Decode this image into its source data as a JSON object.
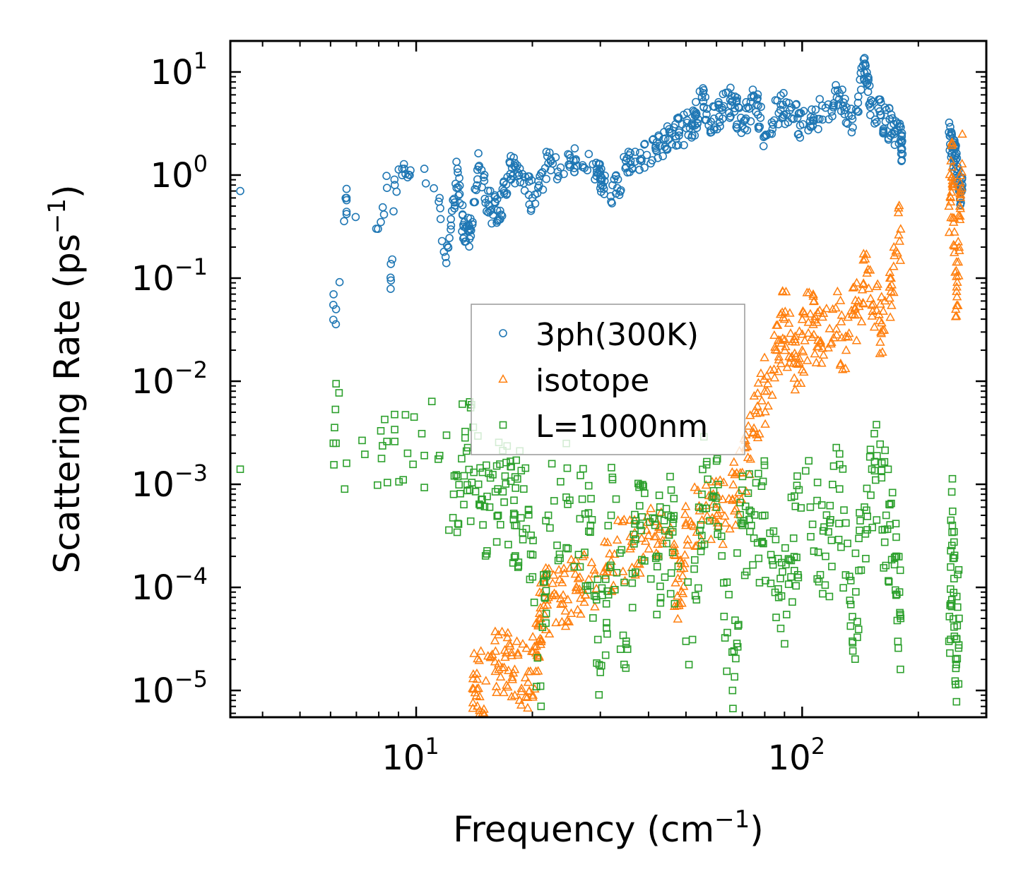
{
  "chart_data": {
    "type": "scatter",
    "xscale": "log",
    "yscale": "log",
    "xlim": [
      3.3,
      300
    ],
    "ylim": [
      5.5e-06,
      20
    ],
    "xlabel": "Frequency (cm",
    "xlabel_exp": "−1",
    "xlabel_end": ")",
    "ylabel": "Scattering Rate (ps",
    "ylabel_exp": "−1",
    "ylabel_end": ")",
    "x_ticks": [
      {
        "base": "10",
        "exp": "1",
        "value": 10
      },
      {
        "base": "10",
        "exp": "2",
        "value": 100
      }
    ],
    "y_ticks": [
      {
        "base": "10",
        "exp": "1",
        "value": 10
      },
      {
        "base": "10",
        "exp": "0",
        "value": 1
      },
      {
        "base": "10",
        "exp": "−1",
        "value": 0.1
      },
      {
        "base": "10",
        "exp": "−2",
        "value": 0.01
      },
      {
        "base": "10",
        "exp": "−3",
        "value": 0.001
      },
      {
        "base": "10",
        "exp": "−4",
        "value": 0.0001
      },
      {
        "base": "10",
        "exp": "−5",
        "value": 1e-05
      }
    ],
    "legend_position": "center",
    "series": [
      {
        "name": "3ph(300K)",
        "marker": "circle",
        "color": "#1f77b4",
        "anchors": [
          [
            3.5,
            0.7
          ],
          [
            6.1,
            0.055
          ],
          [
            6.2,
            0.05
          ],
          [
            6.6,
            0.6
          ],
          [
            6.6,
            0.57
          ],
          [
            8.1,
            0.35
          ],
          [
            8.4,
            0.75
          ],
          [
            8.6,
            0.095
          ],
          [
            8.8,
            0.8
          ],
          [
            9.2,
            1.15
          ],
          [
            9.5,
            0.95
          ],
          [
            10.5,
            1.15
          ],
          [
            11.5,
            0.6
          ],
          [
            11.8,
            0.18
          ],
          [
            12.1,
            0.2
          ],
          [
            12.8,
            1.15
          ],
          [
            13.3,
            0.25
          ],
          [
            13.8,
            0.3
          ],
          [
            14.5,
            1.2
          ],
          [
            15.5,
            0.5
          ],
          [
            16.5,
            0.45
          ],
          [
            17.5,
            1.3
          ],
          [
            18.5,
            1.0
          ],
          [
            20,
            0.6
          ],
          [
            22,
            1.3
          ],
          [
            25,
            1.2
          ],
          [
            28,
            1.6
          ],
          [
            30,
            1.0
          ],
          [
            32,
            0.55
          ],
          [
            35,
            1.2
          ],
          [
            38,
            1.4
          ],
          [
            42,
            1.7
          ],
          [
            45,
            2.2
          ],
          [
            48,
            2.7
          ],
          [
            52,
            3.0
          ],
          [
            55,
            5.7
          ],
          [
            58,
            3.3
          ],
          [
            62,
            4.5
          ],
          [
            66,
            5.2
          ],
          [
            70,
            3.0
          ],
          [
            75,
            5.7
          ],
          [
            80,
            2.4
          ],
          [
            88,
            4.8
          ],
          [
            95,
            3.5
          ],
          [
            105,
            3.0
          ],
          [
            115,
            4.5
          ],
          [
            125,
            6.2
          ],
          [
            135,
            3.5
          ],
          [
            145,
            9.8
          ],
          [
            150,
            5.0
          ],
          [
            160,
            3.8
          ],
          [
            170,
            3.0
          ],
          [
            180,
            2.2
          ],
          [
            182,
            1.6
          ],
          [
            240,
            2.6
          ],
          [
            245,
            1.8
          ],
          [
            250,
            1.4
          ],
          [
            255,
            0.7
          ],
          [
            260,
            0.8
          ]
        ],
        "spread": 0.16
      },
      {
        "name": "isotope",
        "marker": "triangle",
        "color": "#ff7f0e",
        "anchors": [
          [
            14,
            1.05e-05
          ],
          [
            14.5,
            1.05e-05
          ],
          [
            16,
            1.9e-05
          ],
          [
            17,
            2.1e-05
          ],
          [
            18,
            1.6e-05
          ],
          [
            19.5,
            1.2e-05
          ],
          [
            20.5,
            2.7e-05
          ],
          [
            21,
            5e-05
          ],
          [
            22,
            8e-05
          ],
          [
            24,
            7e-05
          ],
          [
            26,
            0.0001
          ],
          [
            28,
            0.00012
          ],
          [
            32,
            0.00018
          ],
          [
            36,
            0.00025
          ],
          [
            40,
            0.00032
          ],
          [
            45,
            0.00035
          ],
          [
            48,
            7e-05
          ],
          [
            50,
            0.0004
          ],
          [
            55,
            0.00045
          ],
          [
            60,
            0.0005
          ],
          [
            66,
            0.0007
          ],
          [
            70,
            0.0013
          ],
          [
            75,
            0.0035
          ],
          [
            80,
            0.008
          ],
          [
            86,
            0.02
          ],
          [
            90,
            0.04
          ],
          [
            95,
            0.015
          ],
          [
            100,
            0.02
          ],
          [
            105,
            0.045
          ],
          [
            110,
            0.025
          ],
          [
            120,
            0.05
          ],
          [
            130,
            0.02
          ],
          [
            140,
            0.06
          ],
          [
            150,
            0.12
          ],
          [
            160,
            0.03
          ],
          [
            170,
            0.1
          ],
          [
            180,
            0.3
          ],
          [
            240,
            0.5
          ],
          [
            245,
            1.2
          ],
          [
            250,
            0.05
          ],
          [
            255,
            0.2
          ],
          [
            260,
            2.5
          ]
        ],
        "spread": 0.35
      },
      {
        "name": "L=1000nm",
        "marker": "square",
        "color": "#2ca02c",
        "anchors": [
          [
            3.5,
            0.0014
          ],
          [
            6.1,
            0.0025
          ],
          [
            6.2,
            0.0025
          ],
          [
            6.6,
            0.0016
          ],
          [
            8.1,
            0.0033
          ],
          [
            8.4,
            0.0026
          ],
          [
            8.8,
            0.0026
          ],
          [
            9.5,
            0.002
          ],
          [
            10.5,
            0.0019
          ],
          [
            11.5,
            0.0019
          ],
          [
            12.5,
            0.0008
          ],
          [
            13.5,
            0.0021
          ],
          [
            14.5,
            0.001
          ],
          [
            15.5,
            0.0006
          ],
          [
            17,
            0.0012
          ],
          [
            18,
            0.0004
          ],
          [
            19,
            0.0009
          ],
          [
            21,
            1.1e-05
          ],
          [
            22,
            0.0005
          ],
          [
            25,
            0.0007
          ],
          [
            28,
            0.00035
          ],
          [
            30,
            1.5e-05
          ],
          [
            32,
            0.0005
          ],
          [
            35,
            3e-05
          ],
          [
            38,
            0.0004
          ],
          [
            42,
            0.0002
          ],
          [
            45,
            0.0005
          ],
          [
            50,
            3e-05
          ],
          [
            55,
            0.0008
          ],
          [
            60,
            0.0006
          ],
          [
            66,
            1e-05
          ],
          [
            70,
            0.0004
          ],
          [
            75,
            0.0003
          ],
          [
            80,
            0.0005
          ],
          [
            88,
            4e-05
          ],
          [
            95,
            0.0003
          ],
          [
            105,
            0.0006
          ],
          [
            115,
            0.0002
          ],
          [
            125,
            0.0009
          ],
          [
            135,
            3e-05
          ],
          [
            145,
            0.0006
          ],
          [
            155,
            0.0011
          ],
          [
            165,
            0.0005
          ],
          [
            175,
            0.0002
          ],
          [
            180,
            5e-05
          ],
          [
            240,
            3e-05
          ],
          [
            245,
            0.0004
          ],
          [
            250,
            2e-05
          ],
          [
            255,
            5e-05
          ]
        ],
        "spread": 0.6
      }
    ]
  }
}
